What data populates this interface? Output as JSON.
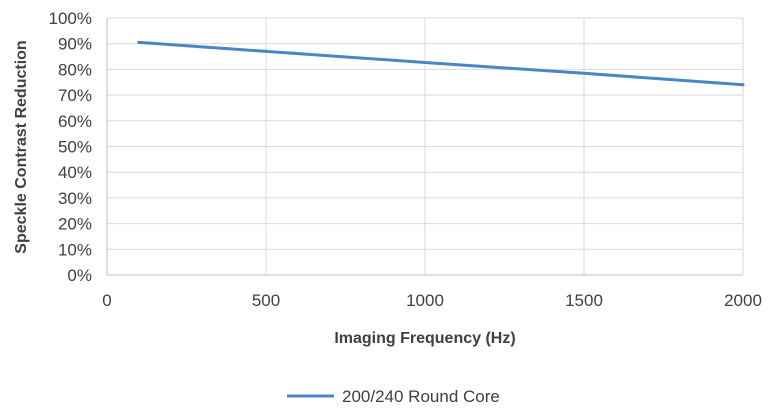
{
  "chart_data": {
    "type": "line",
    "title": "",
    "xlabel": "Imaging Frequency (Hz)",
    "ylabel": "Speckle Contrast Reduction",
    "xlim": [
      0,
      2000
    ],
    "ylim": [
      0,
      100
    ],
    "x_ticks": [
      0,
      500,
      1000,
      1500,
      2000
    ],
    "y_ticks": [
      0,
      10,
      20,
      30,
      40,
      50,
      60,
      70,
      80,
      90,
      100
    ],
    "y_tick_labels": [
      "0%",
      "10%",
      "20%",
      "30%",
      "40%",
      "50%",
      "60%",
      "70%",
      "80%",
      "90%",
      "100%"
    ],
    "grid": true,
    "legend_position": "bottom",
    "series": [
      {
        "name": "200/240 Round Core",
        "color": "#4a86c5",
        "x": [
          100,
          500,
          1000,
          1500,
          2000
        ],
        "y": [
          90.5,
          87,
          82.7,
          78.5,
          74
        ]
      }
    ]
  }
}
